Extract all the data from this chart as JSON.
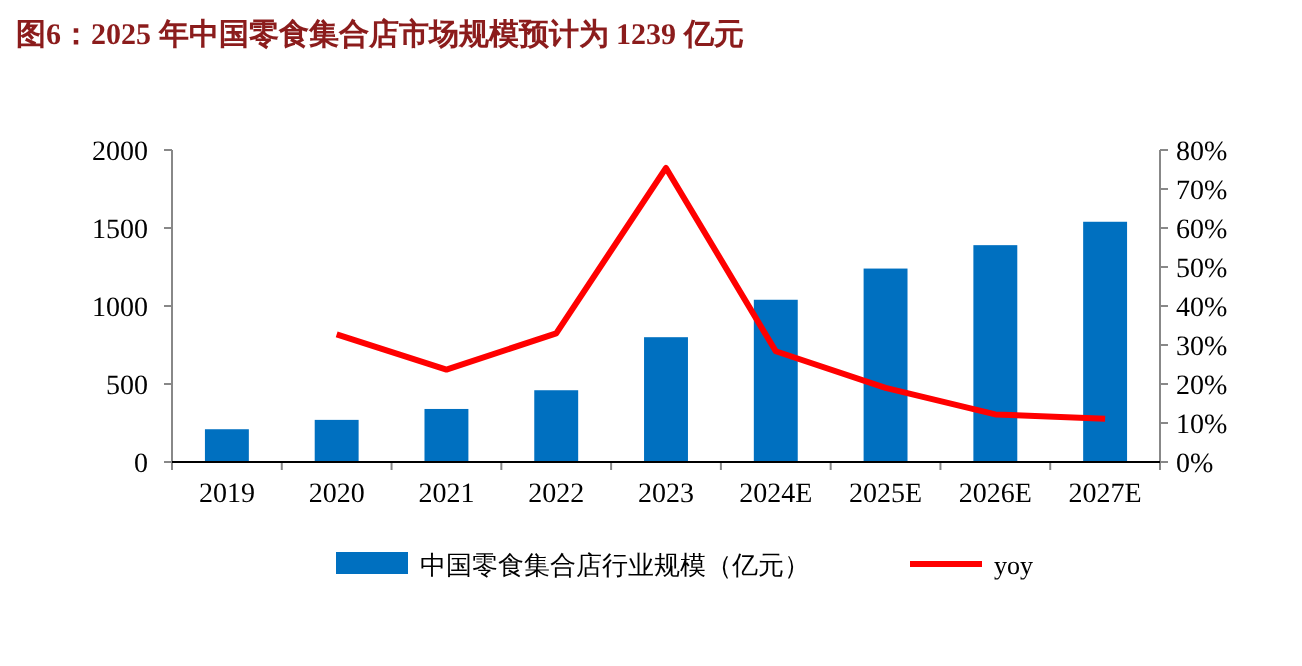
{
  "chart_data": {
    "type": "bar",
    "title": "图6：2025 年中国零食集合店市场规模预计为 1239 亿元",
    "categories": [
      "2019",
      "2020",
      "2021",
      "2022",
      "2023",
      "2024E",
      "2025E",
      "2026E",
      "2027E"
    ],
    "series": [
      {
        "name": "中国零食集合店行业规模（亿元）",
        "color": "#0070c0",
        "values": [
          210,
          270,
          340,
          460,
          800,
          1040,
          1240,
          1390,
          1540
        ]
      },
      {
        "name": "yoy",
        "type": "line",
        "axis": "y2",
        "color": "#ff0000",
        "values": [
          null,
          32.7,
          23.7,
          33,
          75.4,
          28.4,
          19,
          12.2,
          11.1
        ]
      }
    ],
    "ylim": [
      0,
      2000
    ],
    "yticks": [
      0,
      500,
      1000,
      1500,
      2000
    ],
    "y2lim": [
      0,
      80
    ],
    "y2ticks": [
      {
        "value": 0,
        "label": "0%"
      },
      {
        "value": 10,
        "label": "10%"
      },
      {
        "value": 20,
        "label": "20%"
      },
      {
        "value": 30,
        "label": "30%"
      },
      {
        "value": 40,
        "label": "40%"
      },
      {
        "value": 50,
        "label": "50%"
      },
      {
        "value": 60,
        "label": "60%"
      },
      {
        "value": 70,
        "label": "70%"
      },
      {
        "value": 80,
        "label": "80%"
      }
    ],
    "legend": "bottom",
    "grid": false
  }
}
